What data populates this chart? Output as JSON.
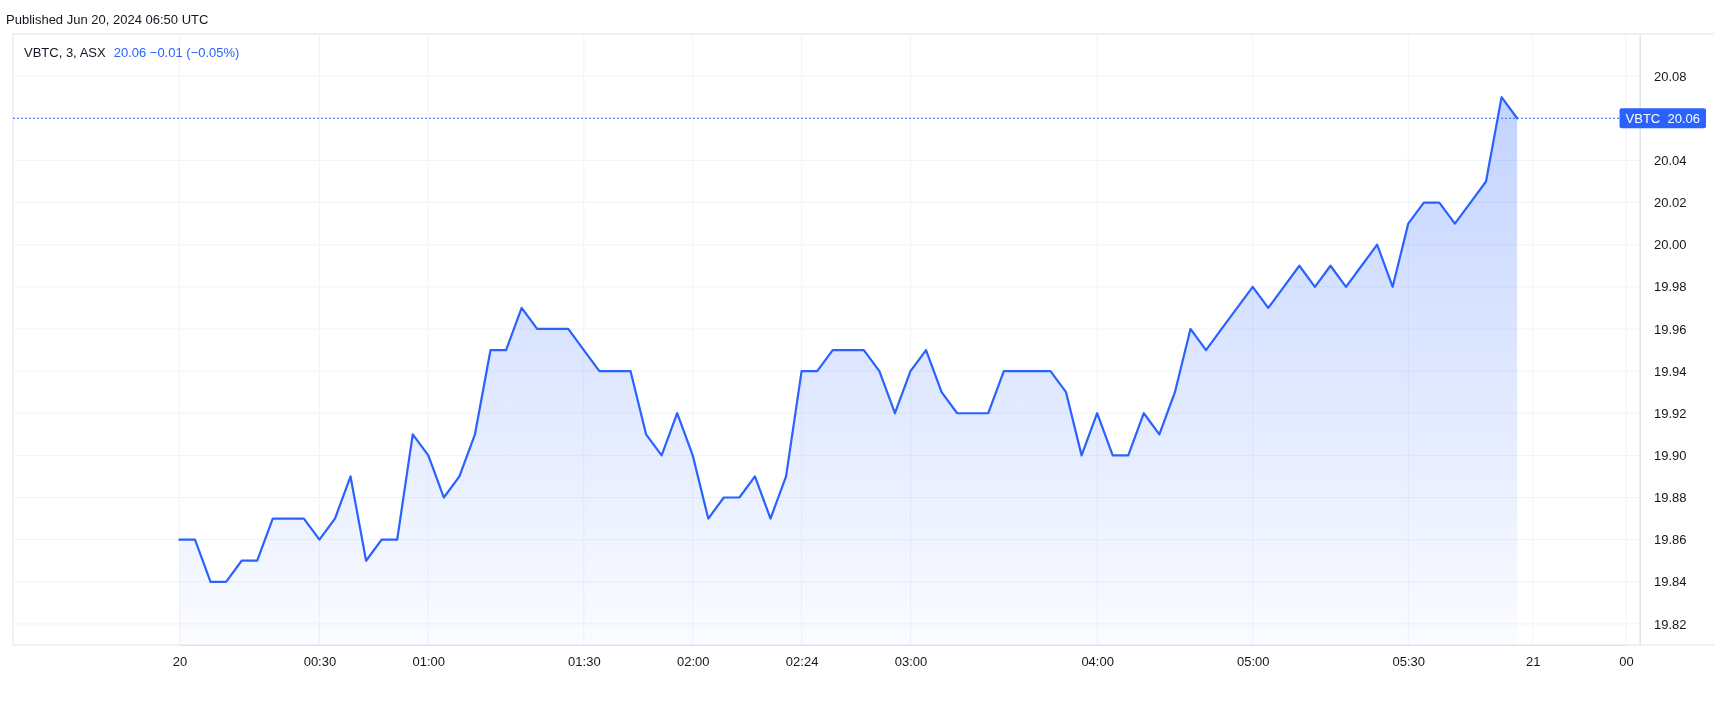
{
  "chart_data": {
    "type": "area",
    "title": "VBTC, 3, ASX",
    "subtitle": "20.06  −0.01 (−0.05%)",
    "annotations": [
      "Published Jun 20, 2024 06:50 UTC"
    ],
    "categories": [
      "20",
      null,
      null,
      null,
      null,
      null,
      null,
      null,
      null,
      "00:30",
      null,
      null,
      null,
      null,
      null,
      null,
      "01:00",
      null,
      null,
      null,
      null,
      null,
      null,
      null,
      null,
      null,
      "01:30",
      null,
      null,
      null,
      null,
      null,
      null,
      "02:00",
      null,
      null,
      null,
      null,
      null,
      null,
      "02:24",
      null,
      null,
      null,
      null,
      null,
      null,
      "03:00",
      null,
      null,
      null,
      null,
      null,
      null,
      null,
      null,
      null,
      null,
      null,
      "04:00",
      null,
      null,
      null,
      null,
      null,
      null,
      null,
      null,
      null,
      "05:00",
      null,
      null,
      null,
      null,
      null,
      null,
      null,
      null,
      null,
      "05:30",
      null,
      null,
      null,
      null,
      null,
      null,
      null,
      "21",
      null,
      null,
      null,
      null,
      null,
      "00"
    ],
    "series": [
      {
        "color": "#2962ff",
        "values": [
          19.86,
          19.86,
          19.84,
          19.84,
          19.85,
          19.85,
          19.87,
          19.87,
          19.87,
          19.86,
          19.87,
          19.89,
          19.85,
          19.86,
          19.86,
          19.91,
          19.9,
          19.88,
          19.89,
          19.91,
          19.95,
          19.95,
          19.97,
          19.96,
          19.96,
          19.96,
          19.95,
          19.94,
          19.94,
          19.94,
          19.91,
          19.9,
          19.92,
          19.9,
          19.87,
          19.88,
          19.88,
          19.89,
          19.87,
          19.89,
          19.94,
          19.94,
          19.95,
          19.95,
          19.95,
          19.94,
          19.92,
          19.94,
          19.95,
          19.93,
          19.92,
          19.92,
          19.92,
          19.94,
          19.94,
          19.94,
          19.94,
          19.93,
          19.9,
          19.92,
          19.9,
          19.9,
          19.92,
          19.91,
          19.93,
          19.96,
          19.95,
          19.96,
          19.97,
          19.98,
          19.97,
          19.98,
          19.99,
          19.98,
          19.99,
          19.98,
          19.99,
          20.0,
          19.98,
          20.01,
          20.02,
          20.02,
          20.01,
          20.02,
          20.03,
          20.07,
          20.06,
          null,
          null,
          null,
          null,
          null,
          null,
          null
        ]
      }
    ],
    "ylim": [
      19.81,
      20.1
    ],
    "yticks": [
      {
        "value": 19.82,
        "label": "19.82"
      },
      {
        "value": 19.84,
        "label": "19.84"
      },
      {
        "value": 19.86,
        "label": "19.86"
      },
      {
        "value": 19.88,
        "label": "19.88"
      },
      {
        "value": 19.9,
        "label": "19.90"
      },
      {
        "value": 19.92,
        "label": "19.92"
      },
      {
        "value": 19.94,
        "label": "19.94"
      },
      {
        "value": 19.96,
        "label": "19.96"
      },
      {
        "value": 19.98,
        "label": "19.98"
      },
      {
        "value": 20,
        "label": "20.00"
      },
      {
        "value": 20.02,
        "label": "20.02"
      },
      {
        "value": 20.04,
        "label": "20.04"
      },
      {
        "value": 20.08,
        "label": "20.08"
      }
    ],
    "ref_lines": [
      {
        "axis": "y",
        "value": 20.06,
        "label": "VBTC  20.06",
        "color": "#2962ff",
        "line_style": "dotted"
      }
    ],
    "grid": true,
    "marker": "none",
    "line_style": "solid"
  }
}
